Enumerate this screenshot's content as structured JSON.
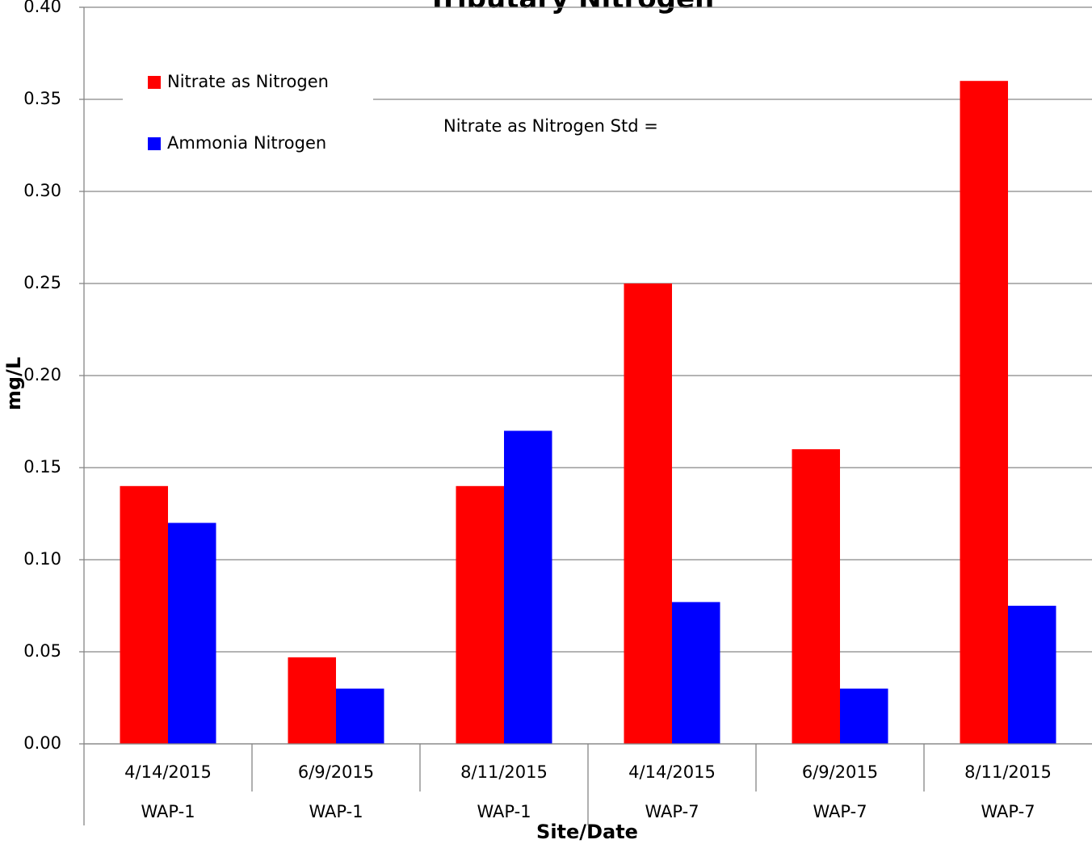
{
  "chart_data": {
    "type": "bar",
    "title": "Tributary Nitrogen",
    "x_label": "Site/Date",
    "y_label": "mg/L",
    "categories": [
      "4/14/2015",
      "6/9/2015",
      "8/11/2015",
      "4/14/2015",
      "6/9/2015",
      "8/11/2015"
    ],
    "sites": [
      "WAP-1",
      "WAP-1",
      "WAP-1",
      "WAP-7",
      "WAP-7",
      "WAP-7"
    ],
    "series": [
      {
        "name": "Nitrate as Nitrogen",
        "color": "#ff0000",
        "values": [
          0.14,
          0.047,
          0.14,
          0.25,
          0.16,
          0.36
        ]
      },
      {
        "name": "Ammonia Nitrogen",
        "color": "#0000ff",
        "values": [
          0.12,
          0.03,
          0.17,
          0.077,
          0.03,
          0.075
        ]
      }
    ],
    "annotation": "Nitrate as Nitrogen Std =",
    "ylim": [
      0,
      0.4
    ],
    "yticks": [
      {
        "value": 0,
        "label": "0.00"
      },
      {
        "value": 0.05,
        "label": "0.05"
      },
      {
        "value": 0.1,
        "label": "0.10"
      },
      {
        "value": 0.15,
        "label": "0.15"
      },
      {
        "value": 0.2,
        "label": "0.20"
      },
      {
        "value": 0.25,
        "label": "0.25"
      },
      {
        "value": 0.3,
        "label": "0.30"
      },
      {
        "value": 0.35,
        "label": "0.35"
      },
      {
        "value": 0.4,
        "label": "0.40"
      }
    ],
    "grid": true,
    "legend": "top-left"
  }
}
